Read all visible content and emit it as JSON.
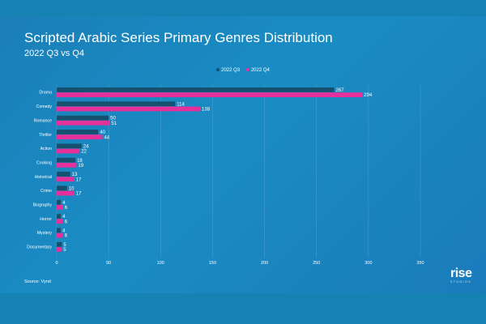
{
  "header": {
    "title": "Scripted Arabic Series Primary Genres Distribution",
    "subtitle": "2022 Q3 vs Q4"
  },
  "footer": {
    "source": "Source:  Vynd"
  },
  "logo": {
    "text": "rise",
    "subtext": "STUDIOS"
  },
  "colors": {
    "q3": "#15506e",
    "q4": "#e5309c",
    "grid": "#6fb3d8"
  },
  "chart_data": {
    "type": "bar",
    "orientation": "horizontal",
    "title": "Scripted Arabic Series Primary Genres Distribution",
    "subtitle": "2022 Q3 vs Q4",
    "categories": [
      "Drama",
      "Comedy",
      "Romance",
      "Thriller",
      "Action",
      "Cooking",
      "Historical",
      "Crime",
      "Biography",
      "Horror",
      "Mystery",
      "Documentary"
    ],
    "series": [
      {
        "name": "2022 Q3",
        "values": [
          267,
          114,
          50,
          40,
          24,
          18,
          13,
          10,
          4,
          4,
          4,
          5
        ]
      },
      {
        "name": "2022 Q4",
        "values": [
          294,
          138,
          51,
          44,
          22,
          19,
          17,
          17,
          6,
          6,
          6,
          5
        ]
      }
    ],
    "xlim": [
      0,
      350
    ],
    "xticks": [
      0,
      50,
      100,
      150,
      200,
      250,
      300,
      350
    ],
    "grid": true,
    "legend": "top-center"
  }
}
